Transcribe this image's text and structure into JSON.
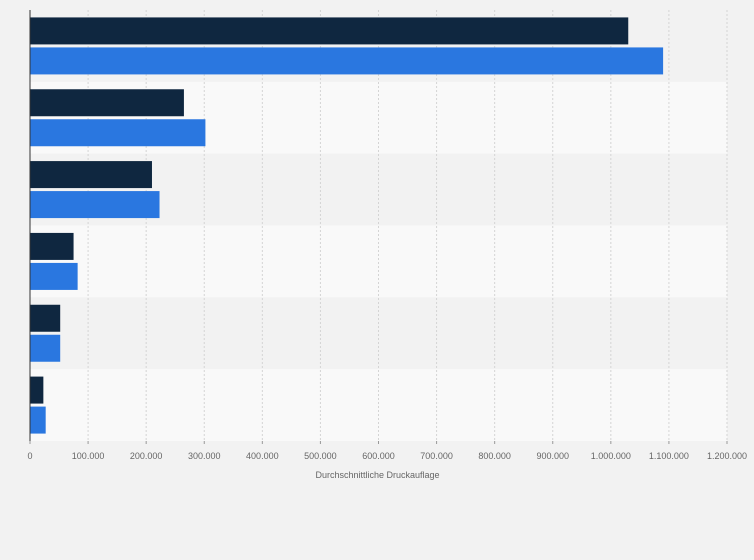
{
  "chart_data": {
    "type": "bar",
    "orientation": "horizontal",
    "title": "",
    "xlabel": "Durchschnittliche Druckauflage",
    "ylabel": "",
    "xlim": [
      0,
      1200000
    ],
    "x_ticks": [
      0,
      100000,
      200000,
      300000,
      400000,
      500000,
      600000,
      700000,
      800000,
      900000,
      1000000,
      1100000,
      1200000
    ],
    "x_tick_labels": [
      "0",
      "100.000",
      "200.000",
      "300.000",
      "400.000",
      "500.000",
      "600.000",
      "700.000",
      "800.000",
      "900.000",
      "1.000.000",
      "1.100.000",
      "1.200.000"
    ],
    "categories": [
      "",
      "",
      "",
      "",
      "",
      ""
    ],
    "series": [
      {
        "values": [
          1030000,
          265000,
          210000,
          75000,
          52000,
          23000
        ],
        "color": "#0f2740"
      },
      {
        "values": [
          1090000,
          302000,
          223000,
          82000,
          52000,
          27000
        ],
        "color": "#2a77e0"
      }
    ],
    "band_colors": [
      "#f2f2f2",
      "#f9f9f9"
    ],
    "grid": true,
    "legend": "none"
  }
}
